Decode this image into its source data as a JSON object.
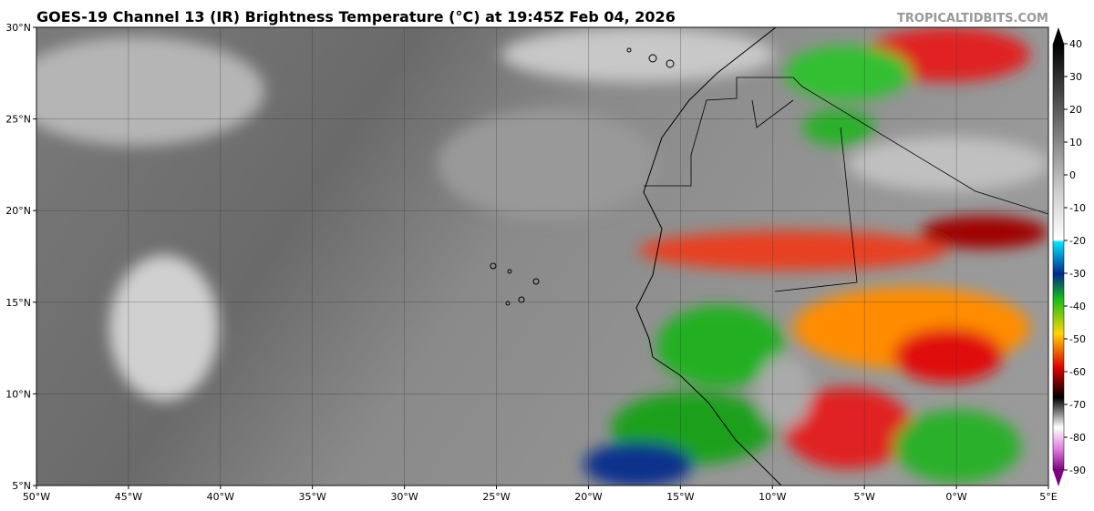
{
  "title": "GOES-19 Channel 13 (IR) Brightness Temperature (°C) at 19:45Z Feb 04, 2026",
  "watermark": "TROPICALTIDBITS.COM",
  "map": {
    "lon_range": [
      -50,
      5
    ],
    "lat_range": [
      5,
      30
    ],
    "lon_ticks": [
      {
        "value": -50,
        "label": "50°W"
      },
      {
        "value": -45,
        "label": "45°W"
      },
      {
        "value": -40,
        "label": "40°W"
      },
      {
        "value": -35,
        "label": "35°W"
      },
      {
        "value": -30,
        "label": "30°W"
      },
      {
        "value": -25,
        "label": "25°W"
      },
      {
        "value": -20,
        "label": "20°W"
      },
      {
        "value": -15,
        "label": "15°W"
      },
      {
        "value": -10,
        "label": "10°W"
      },
      {
        "value": -5,
        "label": "5°W"
      },
      {
        "value": 0,
        "label": "0°W"
      },
      {
        "value": 5,
        "label": "5°E"
      }
    ],
    "lat_ticks": [
      {
        "value": 30,
        "label": "30°N"
      },
      {
        "value": 25,
        "label": "25°N"
      },
      {
        "value": 20,
        "label": "20°N"
      },
      {
        "value": 15,
        "label": "15°N"
      },
      {
        "value": 10,
        "label": "10°N"
      },
      {
        "value": 5,
        "label": "5°N"
      }
    ]
  },
  "colorbar": {
    "range": [
      -90,
      40
    ],
    "ticks": [
      40,
      30,
      20,
      10,
      0,
      -10,
      -20,
      -30,
      -40,
      -50,
      -60,
      -70,
      -80,
      -90
    ]
  }
}
